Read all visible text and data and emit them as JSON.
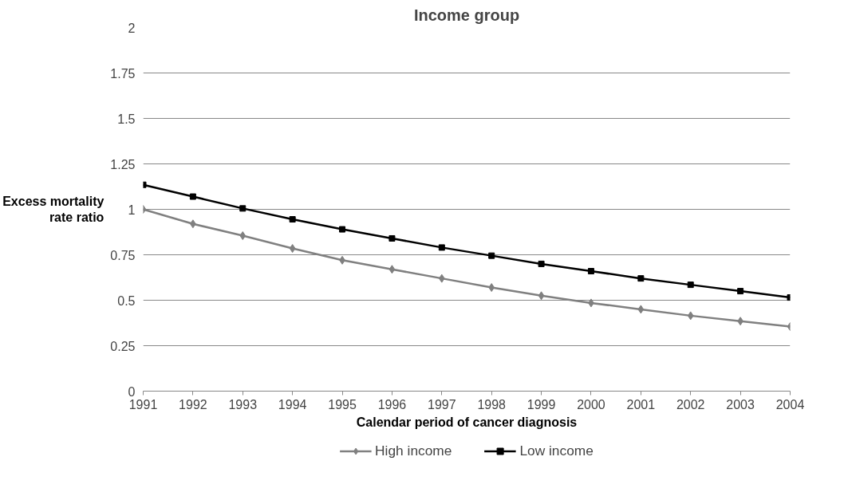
{
  "chart_data": {
    "type": "line",
    "title": "Income group",
    "xlabel": "Calendar period of cancer diagnosis",
    "ylabel": "Excess mortality\nrate ratio",
    "categories": [
      "1991",
      "1992",
      "1993",
      "1994",
      "1995",
      "1996",
      "1997",
      "1998",
      "1999",
      "2000",
      "2001",
      "2002",
      "2003",
      "2004"
    ],
    "series": [
      {
        "name": "High income",
        "color": "#808080",
        "marker": "diamond",
        "values": [
          1.0,
          0.92,
          0.855,
          0.785,
          0.72,
          0.67,
          0.62,
          0.57,
          0.525,
          0.485,
          0.45,
          0.415,
          0.385,
          0.355
        ]
      },
      {
        "name": "Low income",
        "color": "#000000",
        "marker": "square",
        "values": [
          1.135,
          1.07,
          1.005,
          0.945,
          0.89,
          0.84,
          0.79,
          0.745,
          0.7,
          0.66,
          0.62,
          0.585,
          0.55,
          0.515
        ]
      }
    ],
    "ylim": [
      0,
      2
    ],
    "yticks": [
      0,
      0.25,
      0.5,
      0.75,
      1,
      1.25,
      1.5,
      1.75,
      2
    ],
    "grid": "y",
    "legend": "bottom",
    "line_style": "solid"
  }
}
